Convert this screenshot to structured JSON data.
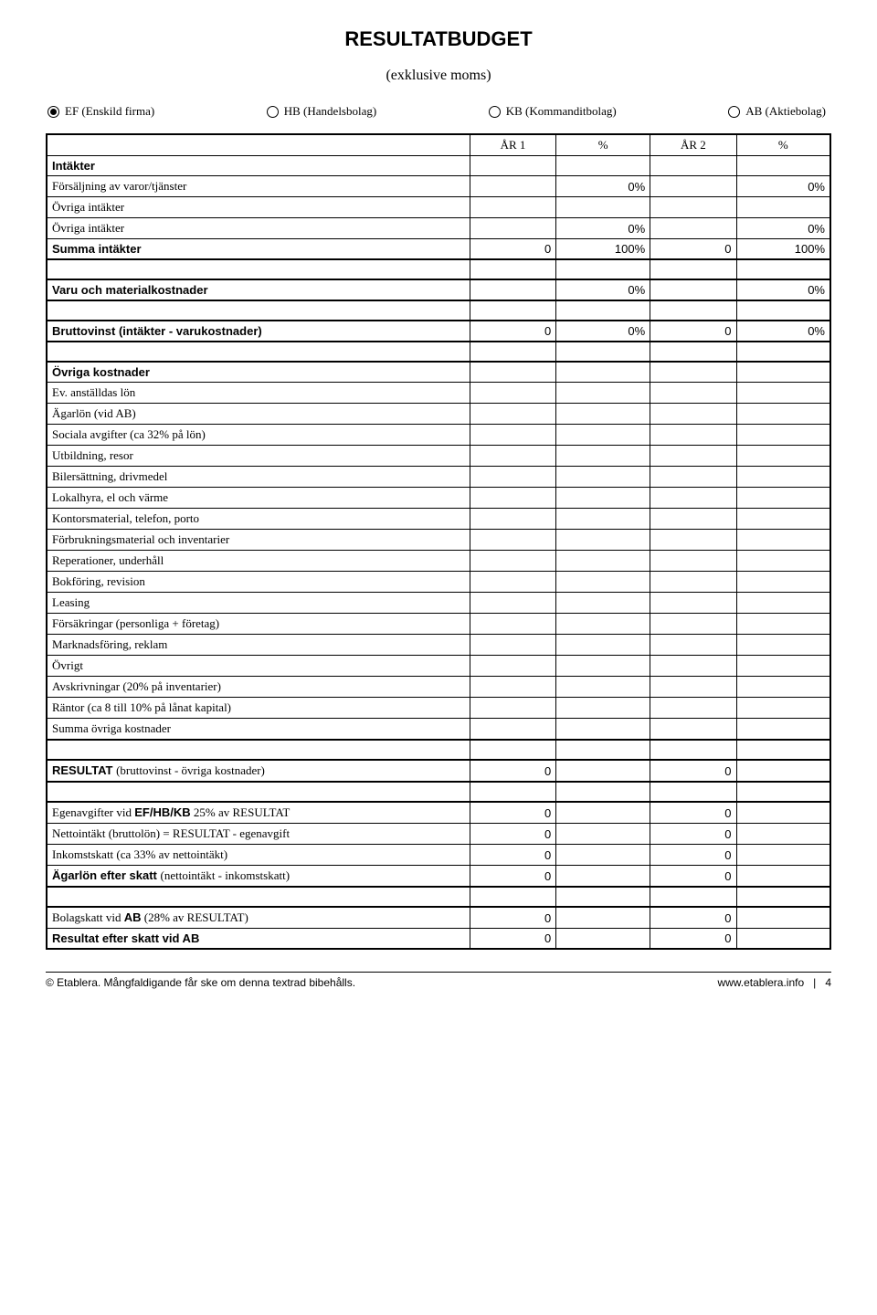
{
  "title": "RESULTATBUDGET",
  "subtitle": "(exklusive moms)",
  "radios": [
    {
      "label": "EF (Enskild firma)",
      "selected": true
    },
    {
      "label": "HB (Handelsbolag)",
      "selected": false
    },
    {
      "label": "KB (Kommanditbolag)",
      "selected": false
    },
    {
      "label": "AB (Aktiebolag)",
      "selected": false
    }
  ],
  "header": {
    "y1": "ÅR 1",
    "p1": "%",
    "y2": "ÅR 2",
    "p2": "%"
  },
  "rows": [
    {
      "label": "Intäkter",
      "bold": true,
      "sans": true
    },
    {
      "label": "Försäljning av varor/tjänster",
      "serif": true,
      "p1": "0%",
      "p2": "0%"
    },
    {
      "label": "Övriga intäkter",
      "serif": true
    },
    {
      "label": "Övriga intäkter",
      "serif": true,
      "p1": "0%",
      "p2": "0%"
    },
    {
      "label": "Summa intäkter",
      "bold": true,
      "sans": true,
      "y1": "0",
      "p1": "100%",
      "y2": "0",
      "p2": "100%",
      "thick": true
    },
    {
      "spacer": true
    },
    {
      "label": "Varu och materialkostnader",
      "bold": true,
      "sans": true,
      "p1": "0%",
      "p2": "0%",
      "thick": true,
      "ttop": true
    },
    {
      "spacer": true
    },
    {
      "label": "Bruttovinst (intäkter - varukostnader)",
      "bold": true,
      "sans": true,
      "y1": "0",
      "p1": "0%",
      "y2": "0",
      "p2": "0%",
      "thick": true,
      "ttop": true
    },
    {
      "spacer": true
    },
    {
      "label": "Övriga kostnader",
      "bold": true,
      "sans": true,
      "ttop": true
    },
    {
      "label": "Ev. anställdas lön",
      "serif": true
    },
    {
      "label": "Ägarlön (vid AB)",
      "serif": true
    },
    {
      "label": "Sociala avgifter (ca 32% på lön)",
      "serif": true
    },
    {
      "label": "Utbildning, resor",
      "serif": true
    },
    {
      "label": "Bilersättning, drivmedel",
      "serif": true
    },
    {
      "label": "Lokalhyra, el och värme",
      "serif": true
    },
    {
      "label": "Kontorsmaterial, telefon, porto",
      "serif": true
    },
    {
      "label": "Förbrukningsmaterial och inventarier",
      "serif": true
    },
    {
      "label": "Reperationer, underhåll",
      "serif": true
    },
    {
      "label": "Bokföring, revision",
      "serif": true
    },
    {
      "label": "Leasing",
      "serif": true
    },
    {
      "label": "Försäkringar (personliga + företag)",
      "serif": true
    },
    {
      "label": "Marknadsföring, reklam",
      "serif": true
    },
    {
      "label": "Övrigt",
      "serif": true
    },
    {
      "label": "Avskrivningar (20% på inventarier)",
      "serif": true
    },
    {
      "label": "Räntor (ca 8 till 10% på lånat kapital)",
      "serif": true
    },
    {
      "label": "Summa övriga kostnader",
      "serif": true,
      "thick": true
    },
    {
      "spacer": true
    },
    {
      "label": "RESULTAT (bruttovinst - övriga kostnader)",
      "bold": true,
      "sans": true,
      "y1": "0",
      "y2": "0",
      "thick": true,
      "ttop": true
    },
    {
      "spacer": true
    },
    {
      "label": "Egenavgifter vid EF/HB/KB 25% av RESULTAT",
      "serif": true,
      "y1": "0",
      "y2": "0",
      "ttop": true
    },
    {
      "label": "Nettointäkt (bruttolön) = RESULTAT - egenavgift",
      "serif": true,
      "y1": "0",
      "y2": "0"
    },
    {
      "label": "Inkomstskatt (ca 33% av nettointäkt)",
      "serif": true,
      "y1": "0",
      "y2": "0"
    },
    {
      "label": "Ägarlön efter skatt (nettointäkt - inkomstskatt)",
      "sans": true,
      "bold": true,
      "y1": "0",
      "y2": "0",
      "thick": true
    },
    {
      "spacer": true
    },
    {
      "label": "Bolagskatt vid AB (28% av RESULTAT)",
      "serif": true,
      "y1": "0",
      "y2": "0",
      "ttop": true
    },
    {
      "label": "Resultat efter skatt vid AB",
      "sans": true,
      "bold": true,
      "y1": "0",
      "y2": "0"
    }
  ],
  "footer": {
    "left": "© Etablera. Mångfaldigande får ske om denna textrad bibehålls.",
    "right_link": "www.etablera.info",
    "sep": "|",
    "page": "4"
  }
}
